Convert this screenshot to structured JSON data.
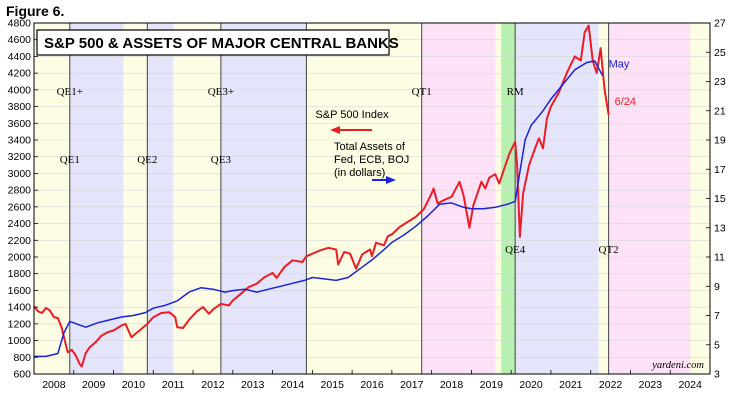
{
  "figure_label": "Figure 6.",
  "chart_data": {
    "type": "line",
    "title": "S&P 500 & ASSETS OF MAJOR CENTRAL BANKS",
    "x_range": [
      2008.0,
      2025.0
    ],
    "x_tick_labels": [
      "2008",
      "2009",
      "2010",
      "2011",
      "2012",
      "2013",
      "2014",
      "2015",
      "2016",
      "2017",
      "2018",
      "2019",
      "2020",
      "2021",
      "2022",
      "2023",
      "2024"
    ],
    "y_left": {
      "min": 600,
      "max": 4800,
      "step": 200,
      "label": "S&P 500 Index"
    },
    "y_right": {
      "min": 3,
      "max": 27,
      "step": 2,
      "label": "Total Assets of Fed, ECB, BOJ (in dollars)"
    },
    "series": [
      {
        "name": "S&P 500 Index",
        "axis": "left",
        "color": "#ee1c25",
        "end_label": "6/24",
        "points": [
          [
            2008.0,
            1410
          ],
          [
            2008.1,
            1350
          ],
          [
            2008.2,
            1330
          ],
          [
            2008.3,
            1390
          ],
          [
            2008.4,
            1360
          ],
          [
            2008.5,
            1280
          ],
          [
            2008.6,
            1270
          ],
          [
            2008.7,
            1150
          ],
          [
            2008.8,
            950
          ],
          [
            2008.85,
            860
          ],
          [
            2008.95,
            890
          ],
          [
            2009.05,
            820
          ],
          [
            2009.15,
            720
          ],
          [
            2009.2,
            690
          ],
          [
            2009.3,
            850
          ],
          [
            2009.4,
            920
          ],
          [
            2009.55,
            980
          ],
          [
            2009.7,
            1060
          ],
          [
            2009.85,
            1100
          ],
          [
            2010.0,
            1120
          ],
          [
            2010.2,
            1180
          ],
          [
            2010.3,
            1200
          ],
          [
            2010.45,
            1040
          ],
          [
            2010.55,
            1080
          ],
          [
            2010.7,
            1140
          ],
          [
            2010.85,
            1200
          ],
          [
            2011.0,
            1280
          ],
          [
            2011.2,
            1330
          ],
          [
            2011.4,
            1340
          ],
          [
            2011.55,
            1280
          ],
          [
            2011.6,
            1160
          ],
          [
            2011.75,
            1150
          ],
          [
            2011.9,
            1250
          ],
          [
            2012.1,
            1350
          ],
          [
            2012.25,
            1400
          ],
          [
            2012.4,
            1320
          ],
          [
            2012.5,
            1370
          ],
          [
            2012.7,
            1440
          ],
          [
            2012.9,
            1420
          ],
          [
            2013.0,
            1480
          ],
          [
            2013.2,
            1560
          ],
          [
            2013.4,
            1640
          ],
          [
            2013.6,
            1680
          ],
          [
            2013.8,
            1760
          ],
          [
            2014.0,
            1810
          ],
          [
            2014.1,
            1750
          ],
          [
            2014.3,
            1880
          ],
          [
            2014.5,
            1960
          ],
          [
            2014.75,
            1940
          ],
          [
            2014.85,
            2010
          ],
          [
            2015.0,
            2040
          ],
          [
            2015.2,
            2080
          ],
          [
            2015.4,
            2110
          ],
          [
            2015.6,
            2090
          ],
          [
            2015.65,
            1910
          ],
          [
            2015.8,
            2060
          ],
          [
            2015.95,
            2040
          ],
          [
            2016.1,
            1860
          ],
          [
            2016.25,
            2030
          ],
          [
            2016.45,
            2090
          ],
          [
            2016.5,
            2010
          ],
          [
            2016.6,
            2170
          ],
          [
            2016.8,
            2140
          ],
          [
            2016.9,
            2250
          ],
          [
            2017.0,
            2270
          ],
          [
            2017.2,
            2360
          ],
          [
            2017.4,
            2420
          ],
          [
            2017.6,
            2480
          ],
          [
            2017.8,
            2570
          ],
          [
            2018.0,
            2760
          ],
          [
            2018.05,
            2820
          ],
          [
            2018.15,
            2640
          ],
          [
            2018.3,
            2680
          ],
          [
            2018.5,
            2720
          ],
          [
            2018.7,
            2900
          ],
          [
            2018.8,
            2740
          ],
          [
            2018.95,
            2350
          ],
          [
            2019.05,
            2620
          ],
          [
            2019.25,
            2900
          ],
          [
            2019.35,
            2820
          ],
          [
            2019.45,
            2950
          ],
          [
            2019.6,
            2990
          ],
          [
            2019.7,
            2880
          ],
          [
            2019.8,
            3020
          ],
          [
            2019.95,
            3230
          ],
          [
            2020.1,
            3380
          ],
          [
            2020.15,
            3100
          ],
          [
            2020.22,
            2240
          ],
          [
            2020.3,
            2760
          ],
          [
            2020.45,
            3100
          ],
          [
            2020.6,
            3300
          ],
          [
            2020.7,
            3420
          ],
          [
            2020.8,
            3300
          ],
          [
            2020.9,
            3660
          ],
          [
            2021.0,
            3800
          ],
          [
            2021.2,
            3970
          ],
          [
            2021.4,
            4200
          ],
          [
            2021.6,
            4400
          ],
          [
            2021.75,
            4350
          ],
          [
            2021.85,
            4690
          ],
          [
            2021.95,
            4770
          ],
          [
            2022.05,
            4350
          ],
          [
            2022.15,
            4200
          ],
          [
            2022.25,
            4500
          ],
          [
            2022.35,
            4000
          ],
          [
            2022.45,
            3700
          ]
        ]
      },
      {
        "name": "Total Assets of Fed, ECB, BOJ (in dollars)",
        "axis": "right",
        "color": "#1a22dd",
        "end_label": "May",
        "points": [
          [
            2008.0,
            4.2
          ],
          [
            2008.3,
            4.2
          ],
          [
            2008.6,
            4.4
          ],
          [
            2008.75,
            5.8
          ],
          [
            2008.9,
            6.6
          ],
          [
            2009.1,
            6.4
          ],
          [
            2009.3,
            6.2
          ],
          [
            2009.6,
            6.5
          ],
          [
            2009.9,
            6.7
          ],
          [
            2010.2,
            6.9
          ],
          [
            2010.5,
            7.0
          ],
          [
            2010.8,
            7.2
          ],
          [
            2011.0,
            7.5
          ],
          [
            2011.3,
            7.7
          ],
          [
            2011.6,
            8.0
          ],
          [
            2011.9,
            8.6
          ],
          [
            2012.2,
            8.9
          ],
          [
            2012.5,
            8.8
          ],
          [
            2012.8,
            8.6
          ],
          [
            2013.0,
            8.7
          ],
          [
            2013.3,
            8.8
          ],
          [
            2013.6,
            8.6
          ],
          [
            2013.9,
            8.8
          ],
          [
            2014.2,
            9.0
          ],
          [
            2014.5,
            9.2
          ],
          [
            2014.8,
            9.4
          ],
          [
            2015.0,
            9.6
          ],
          [
            2015.3,
            9.5
          ],
          [
            2015.6,
            9.4
          ],
          [
            2015.9,
            9.6
          ],
          [
            2016.2,
            10.2
          ],
          [
            2016.5,
            10.8
          ],
          [
            2016.8,
            11.5
          ],
          [
            2017.0,
            12.0
          ],
          [
            2017.3,
            12.5
          ],
          [
            2017.6,
            13.1
          ],
          [
            2017.9,
            13.8
          ],
          [
            2018.2,
            14.6
          ],
          [
            2018.5,
            14.7
          ],
          [
            2018.8,
            14.4
          ],
          [
            2019.0,
            14.3
          ],
          [
            2019.3,
            14.3
          ],
          [
            2019.6,
            14.4
          ],
          [
            2019.9,
            14.6
          ],
          [
            2020.1,
            14.8
          ],
          [
            2020.2,
            16.5
          ],
          [
            2020.35,
            19.0
          ],
          [
            2020.5,
            20.0
          ],
          [
            2020.8,
            21.0
          ],
          [
            2021.0,
            21.8
          ],
          [
            2021.3,
            22.8
          ],
          [
            2021.6,
            23.8
          ],
          [
            2021.9,
            24.3
          ],
          [
            2022.1,
            24.4
          ],
          [
            2022.3,
            23.4
          ]
        ]
      }
    ],
    "periods": [
      {
        "label": "QE1",
        "start": 2008.9,
        "end": 2010.25
      },
      {
        "label": "QE2",
        "start": 2010.85,
        "end": 2011.5
      },
      {
        "label": "QE3",
        "start": 2012.7,
        "end": 2014.85
      },
      {
        "label": "QT1",
        "start": 2017.75,
        "end": 2019.6
      },
      {
        "label": "RM",
        "start": 2019.75,
        "end": 2020.1
      },
      {
        "label": "QE4",
        "start": 2020.1,
        "end": 2022.2
      },
      {
        "label": "QT2",
        "start": 2022.45,
        "end": 2024.5
      }
    ],
    "event_lines": [
      {
        "x": 2008.9,
        "labels": [
          "QE1+",
          "QE1"
        ]
      },
      {
        "x": 2010.85,
        "labels": [
          "QE2"
        ]
      },
      {
        "x": 2012.7,
        "labels": [
          "QE3+",
          "QE3"
        ]
      },
      {
        "x": 2014.85,
        "labels": []
      },
      {
        "x": 2017.75,
        "labels": [
          "QT1"
        ]
      },
      {
        "x": 2020.1,
        "labels": [
          "RM",
          "QE4"
        ]
      },
      {
        "x": 2022.45,
        "labels": [
          "QT2"
        ]
      }
    ]
  },
  "legend": {
    "sp_label": "S&P 500 Index",
    "assets_line1": "Total Assets of",
    "assets_line2": "Fed, ECB, BOJ",
    "assets_line3": "(in dollars)"
  },
  "source": "yardeni.com"
}
